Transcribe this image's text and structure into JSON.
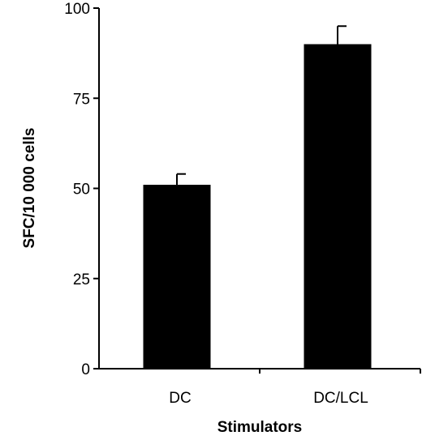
{
  "chart_data": {
    "type": "bar",
    "categories": [
      "DC",
      "DC/LCL"
    ],
    "values": [
      51,
      90
    ],
    "error": [
      3,
      5
    ],
    "title": "",
    "xlabel": "Stimulators",
    "ylabel": "SFC/10 000 cells",
    "ylim": [
      0,
      100
    ],
    "yticks": [
      "0",
      "25",
      "50",
      "75",
      "100"
    ],
    "grid": false,
    "legend": "none",
    "bar_color": "#000000"
  }
}
